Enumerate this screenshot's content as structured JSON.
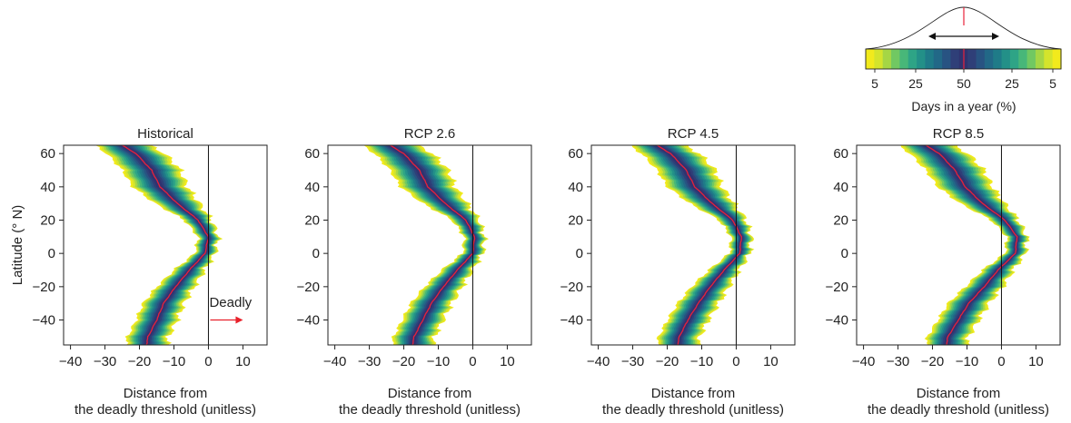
{
  "colorbar": {
    "tick_labels": [
      "5",
      "25",
      "50",
      "25",
      "5"
    ],
    "label": "Days in a year (%)",
    "colors": [
      "#f2ea1c",
      "#d4e42c",
      "#a5d645",
      "#71c862",
      "#48b779",
      "#2ea486",
      "#239088",
      "#1f7b88",
      "#226887",
      "#285382",
      "#2f3f78",
      "#303370",
      "#2f3f78",
      "#285382",
      "#226887",
      "#1f7b88",
      "#239088",
      "#2ea486",
      "#48b779",
      "#71c862",
      "#a5d645",
      "#d4e42c",
      "#f2ea1c"
    ]
  },
  "shared": {
    "ylabel": "Latitude (° N)",
    "xlabel_line1": "Distance from",
    "xlabel_line2": "the deadly threshold (unitless)",
    "deadly_annotation": "Deadly",
    "median_color": "#e8203a",
    "arrow_color": "#e8202a"
  },
  "chart_data": [
    {
      "type": "area",
      "title": "Historical",
      "xlim": [
        -42,
        17
      ],
      "ylim": [
        -55,
        65
      ],
      "xticks": [
        -40,
        -30,
        -20,
        -10,
        0,
        10
      ],
      "yticks": [
        -40,
        -20,
        0,
        20,
        40,
        60
      ],
      "threshold_x": 0,
      "latitude": [
        -55,
        -50,
        -40,
        -30,
        -20,
        -10,
        0,
        10,
        20,
        30,
        40,
        50,
        60,
        65
      ],
      "median": [
        -18,
        -17.5,
        -15,
        -13,
        -9.5,
        -5.5,
        -1,
        0,
        -3,
        -9,
        -14,
        -16.5,
        -21,
        -25
      ],
      "half_width_5pct": [
        6,
        6,
        6,
        6,
        5.5,
        4.5,
        3,
        3,
        4,
        6.5,
        8,
        8.5,
        8.5,
        8
      ]
    },
    {
      "type": "area",
      "title": "RCP 2.6",
      "xlim": [
        -42,
        17
      ],
      "ylim": [
        -55,
        65
      ],
      "xticks": [
        -40,
        -30,
        -20,
        -10,
        0,
        10
      ],
      "yticks": [
        -40,
        -20,
        0,
        20,
        40,
        60
      ],
      "threshold_x": 0,
      "latitude": [
        -55,
        -50,
        -40,
        -30,
        -20,
        -10,
        0,
        10,
        20,
        30,
        40,
        50,
        60,
        65
      ],
      "median": [
        -17.5,
        -17,
        -14.5,
        -12,
        -8.5,
        -4.5,
        0,
        0.5,
        -2,
        -8,
        -13,
        -15.5,
        -20,
        -24
      ],
      "half_width_5pct": [
        6,
        6,
        6,
        6,
        5.5,
        4.5,
        3,
        3,
        4,
        6.5,
        8,
        8.5,
        8.5,
        8
      ]
    },
    {
      "type": "area",
      "title": "RCP 4.5",
      "xlim": [
        -42,
        17
      ],
      "ylim": [
        -55,
        65
      ],
      "xticks": [
        -40,
        -30,
        -20,
        -10,
        0,
        10
      ],
      "yticks": [
        -40,
        -20,
        0,
        20,
        40,
        60
      ],
      "threshold_x": 0,
      "latitude": [
        -55,
        -50,
        -40,
        -30,
        -20,
        -10,
        0,
        10,
        20,
        30,
        40,
        50,
        60,
        65
      ],
      "median": [
        -17,
        -16.5,
        -14,
        -11,
        -7.5,
        -3.5,
        1,
        1.5,
        -1,
        -7,
        -12,
        -14.5,
        -19,
        -23
      ],
      "half_width_5pct": [
        6,
        6,
        6,
        6,
        5.5,
        4.5,
        3,
        3,
        4,
        6.5,
        8,
        8.5,
        8.5,
        8
      ]
    },
    {
      "type": "area",
      "title": "RCP 8.5",
      "xlim": [
        -42,
        17
      ],
      "ylim": [
        -55,
        65
      ],
      "xticks": [
        -40,
        -30,
        -20,
        -10,
        0,
        10
      ],
      "yticks": [
        -40,
        -20,
        0,
        20,
        40,
        60
      ],
      "threshold_x": 0,
      "latitude": [
        -55,
        -50,
        -40,
        -30,
        -20,
        -10,
        0,
        10,
        20,
        30,
        40,
        50,
        60,
        65
      ],
      "median": [
        -16,
        -15.5,
        -12.5,
        -9.5,
        -5,
        -1,
        4,
        4.5,
        1,
        -5.5,
        -10.5,
        -13.5,
        -18,
        -22
      ],
      "half_width_5pct": [
        6,
        6,
        6,
        6,
        5.5,
        4.5,
        3,
        3,
        4,
        6.5,
        8,
        8.5,
        8.5,
        8
      ]
    }
  ]
}
